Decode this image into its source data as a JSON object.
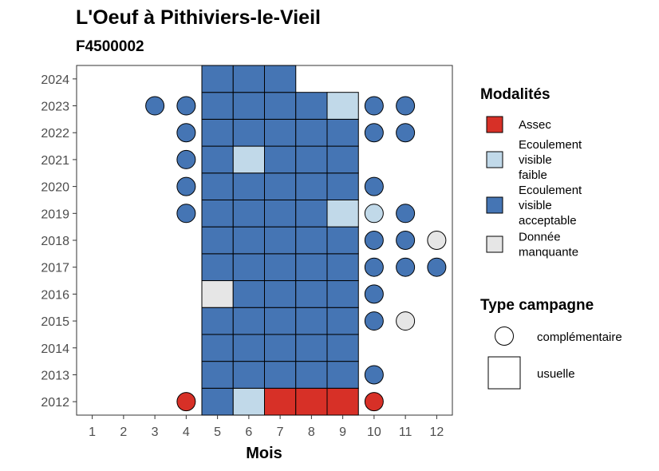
{
  "chart_data": {
    "type": "heatmap",
    "title": "L'Oeuf à Pithiviers-le-Vieil",
    "subtitle": "F4500002",
    "xlabel": "Mois",
    "ylabel": "",
    "x_ticks": [
      1,
      2,
      3,
      4,
      5,
      6,
      7,
      8,
      9,
      10,
      11,
      12
    ],
    "y_ticks": [
      2012,
      2013,
      2014,
      2015,
      2016,
      2017,
      2018,
      2019,
      2020,
      2021,
      2022,
      2023,
      2024
    ],
    "xlim": [
      0.5,
      12.5
    ],
    "ylim": [
      2011.5,
      2024.5
    ],
    "grid": false,
    "legend_placement": "right",
    "modalites": {
      "title": "Modalités",
      "items": [
        {
          "key": "assec",
          "label_lines": [
            "Assec"
          ],
          "color": "#d73027"
        },
        {
          "key": "faible",
          "label_lines": [
            "Ecoulement",
            "visible",
            "faible"
          ],
          "color": "#c1d9e9"
        },
        {
          "key": "acceptable",
          "label_lines": [
            "Ecoulement",
            "visible",
            "acceptable"
          ],
          "color": "#4575b4"
        },
        {
          "key": "manquante",
          "label_lines": [
            "Donnée",
            "manquante"
          ],
          "color": "#e6e6e6"
        }
      ]
    },
    "campagne": {
      "title": "Type campagne",
      "items": [
        {
          "key": "complementaire",
          "label": "complémentaire",
          "shape": "circle"
        },
        {
          "key": "usuelle",
          "label": "usuelle",
          "shape": "square"
        }
      ]
    },
    "usuelle_points": [
      {
        "year": 2012,
        "month": 5,
        "modalite": "acceptable"
      },
      {
        "year": 2012,
        "month": 6,
        "modalite": "faible"
      },
      {
        "year": 2012,
        "month": 7,
        "modalite": "assec"
      },
      {
        "year": 2012,
        "month": 8,
        "modalite": "assec"
      },
      {
        "year": 2012,
        "month": 9,
        "modalite": "assec"
      },
      {
        "year": 2013,
        "month": 5,
        "modalite": "acceptable"
      },
      {
        "year": 2013,
        "month": 6,
        "modalite": "acceptable"
      },
      {
        "year": 2013,
        "month": 7,
        "modalite": "acceptable"
      },
      {
        "year": 2013,
        "month": 8,
        "modalite": "acceptable"
      },
      {
        "year": 2013,
        "month": 9,
        "modalite": "acceptable"
      },
      {
        "year": 2014,
        "month": 5,
        "modalite": "acceptable"
      },
      {
        "year": 2014,
        "month": 6,
        "modalite": "acceptable"
      },
      {
        "year": 2014,
        "month": 7,
        "modalite": "acceptable"
      },
      {
        "year": 2014,
        "month": 8,
        "modalite": "acceptable"
      },
      {
        "year": 2014,
        "month": 9,
        "modalite": "acceptable"
      },
      {
        "year": 2015,
        "month": 5,
        "modalite": "acceptable"
      },
      {
        "year": 2015,
        "month": 6,
        "modalite": "acceptable"
      },
      {
        "year": 2015,
        "month": 7,
        "modalite": "acceptable"
      },
      {
        "year": 2015,
        "month": 8,
        "modalite": "acceptable"
      },
      {
        "year": 2015,
        "month": 9,
        "modalite": "acceptable"
      },
      {
        "year": 2016,
        "month": 5,
        "modalite": "manquante"
      },
      {
        "year": 2016,
        "month": 6,
        "modalite": "acceptable"
      },
      {
        "year": 2016,
        "month": 7,
        "modalite": "acceptable"
      },
      {
        "year": 2016,
        "month": 8,
        "modalite": "acceptable"
      },
      {
        "year": 2016,
        "month": 9,
        "modalite": "acceptable"
      },
      {
        "year": 2017,
        "month": 5,
        "modalite": "acceptable"
      },
      {
        "year": 2017,
        "month": 6,
        "modalite": "acceptable"
      },
      {
        "year": 2017,
        "month": 7,
        "modalite": "acceptable"
      },
      {
        "year": 2017,
        "month": 8,
        "modalite": "acceptable"
      },
      {
        "year": 2017,
        "month": 9,
        "modalite": "acceptable"
      },
      {
        "year": 2018,
        "month": 5,
        "modalite": "acceptable"
      },
      {
        "year": 2018,
        "month": 6,
        "modalite": "acceptable"
      },
      {
        "year": 2018,
        "month": 7,
        "modalite": "acceptable"
      },
      {
        "year": 2018,
        "month": 8,
        "modalite": "acceptable"
      },
      {
        "year": 2018,
        "month": 9,
        "modalite": "acceptable"
      },
      {
        "year": 2019,
        "month": 5,
        "modalite": "acceptable"
      },
      {
        "year": 2019,
        "month": 6,
        "modalite": "acceptable"
      },
      {
        "year": 2019,
        "month": 7,
        "modalite": "acceptable"
      },
      {
        "year": 2019,
        "month": 8,
        "modalite": "acceptable"
      },
      {
        "year": 2019,
        "month": 9,
        "modalite": "faible"
      },
      {
        "year": 2020,
        "month": 5,
        "modalite": "acceptable"
      },
      {
        "year": 2020,
        "month": 6,
        "modalite": "acceptable"
      },
      {
        "year": 2020,
        "month": 7,
        "modalite": "acceptable"
      },
      {
        "year": 2020,
        "month": 8,
        "modalite": "acceptable"
      },
      {
        "year": 2020,
        "month": 9,
        "modalite": "acceptable"
      },
      {
        "year": 2021,
        "month": 5,
        "modalite": "acceptable"
      },
      {
        "year": 2021,
        "month": 6,
        "modalite": "faible"
      },
      {
        "year": 2021,
        "month": 7,
        "modalite": "acceptable"
      },
      {
        "year": 2021,
        "month": 8,
        "modalite": "acceptable"
      },
      {
        "year": 2021,
        "month": 9,
        "modalite": "acceptable"
      },
      {
        "year": 2022,
        "month": 5,
        "modalite": "acceptable"
      },
      {
        "year": 2022,
        "month": 6,
        "modalite": "acceptable"
      },
      {
        "year": 2022,
        "month": 7,
        "modalite": "acceptable"
      },
      {
        "year": 2022,
        "month": 8,
        "modalite": "acceptable"
      },
      {
        "year": 2022,
        "month": 9,
        "modalite": "acceptable"
      },
      {
        "year": 2023,
        "month": 5,
        "modalite": "acceptable"
      },
      {
        "year": 2023,
        "month": 6,
        "modalite": "acceptable"
      },
      {
        "year": 2023,
        "month": 7,
        "modalite": "acceptable"
      },
      {
        "year": 2023,
        "month": 8,
        "modalite": "acceptable"
      },
      {
        "year": 2023,
        "month": 9,
        "modalite": "faible"
      },
      {
        "year": 2024,
        "month": 5,
        "modalite": "acceptable"
      },
      {
        "year": 2024,
        "month": 6,
        "modalite": "acceptable"
      },
      {
        "year": 2024,
        "month": 7,
        "modalite": "acceptable"
      }
    ],
    "complementaire_points": [
      {
        "year": 2012,
        "month": 4,
        "modalite": "assec"
      },
      {
        "year": 2012,
        "month": 10,
        "modalite": "assec"
      },
      {
        "year": 2013,
        "month": 10,
        "modalite": "acceptable"
      },
      {
        "year": 2015,
        "month": 10,
        "modalite": "acceptable"
      },
      {
        "year": 2015,
        "month": 11,
        "modalite": "manquante"
      },
      {
        "year": 2016,
        "month": 10,
        "modalite": "acceptable"
      },
      {
        "year": 2017,
        "month": 10,
        "modalite": "acceptable"
      },
      {
        "year": 2017,
        "month": 11,
        "modalite": "acceptable"
      },
      {
        "year": 2017,
        "month": 12,
        "modalite": "acceptable"
      },
      {
        "year": 2018,
        "month": 10,
        "modalite": "acceptable"
      },
      {
        "year": 2018,
        "month": 11,
        "modalite": "acceptable"
      },
      {
        "year": 2018,
        "month": 12,
        "modalite": "manquante"
      },
      {
        "year": 2019,
        "month": 4,
        "modalite": "acceptable"
      },
      {
        "year": 2019,
        "month": 10,
        "modalite": "faible"
      },
      {
        "year": 2019,
        "month": 11,
        "modalite": "acceptable"
      },
      {
        "year": 2020,
        "month": 4,
        "modalite": "acceptable"
      },
      {
        "year": 2020,
        "month": 10,
        "modalite": "acceptable"
      },
      {
        "year": 2021,
        "month": 4,
        "modalite": "acceptable"
      },
      {
        "year": 2022,
        "month": 4,
        "modalite": "acceptable"
      },
      {
        "year": 2022,
        "month": 10,
        "modalite": "acceptable"
      },
      {
        "year": 2022,
        "month": 11,
        "modalite": "acceptable"
      },
      {
        "year": 2023,
        "month": 3,
        "modalite": "acceptable"
      },
      {
        "year": 2023,
        "month": 4,
        "modalite": "acceptable"
      },
      {
        "year": 2023,
        "month": 10,
        "modalite": "acceptable"
      },
      {
        "year": 2023,
        "month": 11,
        "modalite": "acceptable"
      }
    ]
  }
}
